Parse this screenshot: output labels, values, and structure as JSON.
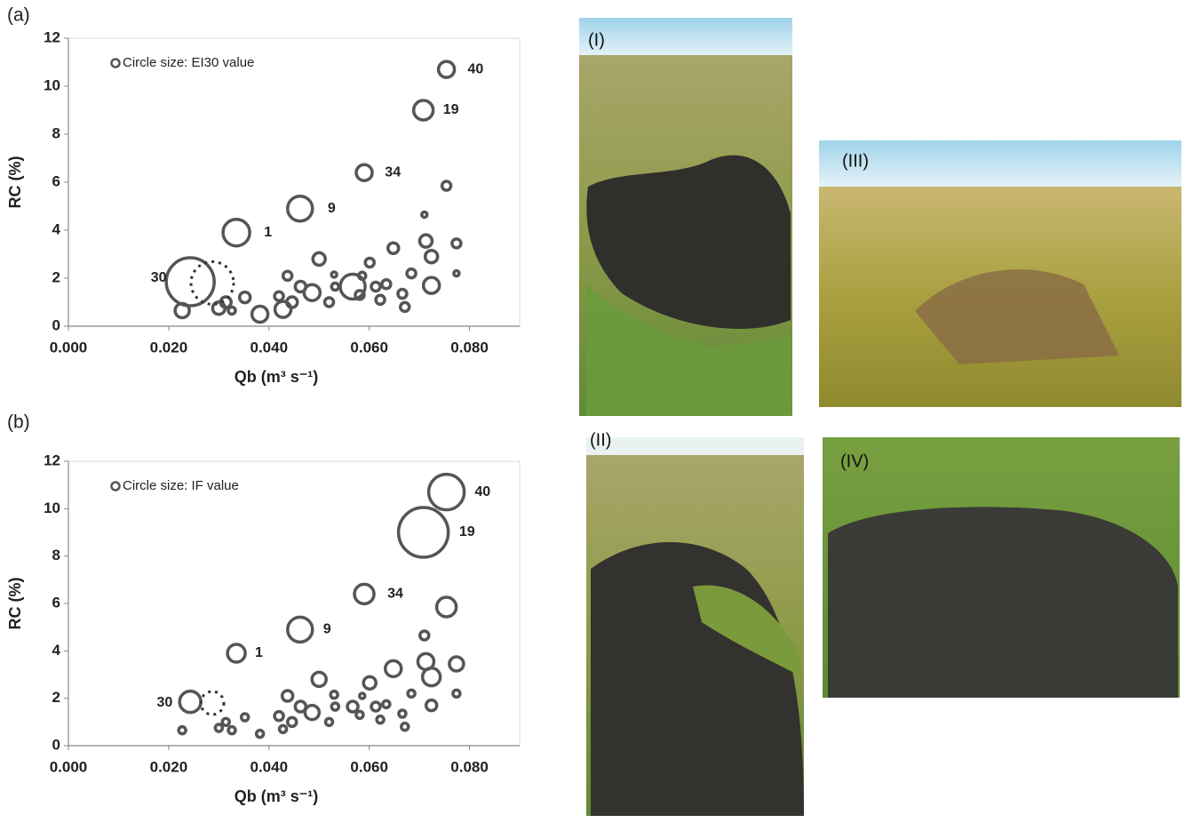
{
  "chart_data": [
    {
      "type": "bubble",
      "panel_label": "(a)",
      "x_label": "Qb (m³ s⁻¹)",
      "y_label": "RC (%)",
      "xlim": [
        0,
        0.09
      ],
      "ylim": [
        0,
        12
      ],
      "xticks": [
        {
          "value": 0,
          "label": "0.000"
        },
        {
          "value": 0.02,
          "label": "0.020"
        },
        {
          "value": 0.04,
          "label": "0.040"
        },
        {
          "value": 0.06,
          "label": "0.060"
        },
        {
          "value": 0.08,
          "label": "0.080"
        }
      ],
      "yticks": [
        0,
        2,
        4,
        6,
        8,
        10,
        12
      ],
      "series": [
        {
          "name": "Circle size: EI30 value",
          "color": "#555555",
          "x": [
            0.0754,
            0.0708,
            0.059,
            0.0462,
            0.0335,
            0.0243,
            0.0754,
            0.071,
            0.0713,
            0.0774,
            0.0724,
            0.0648,
            0.0724,
            0.0774,
            0.0684,
            0.0601,
            0.05,
            0.0567,
            0.0486,
            0.0463,
            0.0437,
            0.0428,
            0.0382,
            0.0352,
            0.03,
            0.0314,
            0.0326,
            0.0227,
            0.0446,
            0.042,
            0.052,
            0.0532,
            0.0581,
            0.0613,
            0.0622,
            0.0634,
            0.0666,
            0.0671,
            0.0586,
            0.053
          ],
          "y": [
            10.7,
            9.0,
            6.4,
            4.9,
            3.9,
            1.85,
            5.85,
            4.65,
            3.55,
            3.45,
            2.9,
            3.25,
            1.7,
            2.2,
            2.2,
            2.65,
            2.8,
            1.65,
            1.4,
            1.65,
            2.1,
            0.7,
            0.5,
            1.2,
            0.75,
            1.0,
            0.65,
            0.65,
            1.0,
            1.25,
            1.0,
            1.65,
            1.3,
            1.65,
            1.1,
            1.75,
            1.35,
            0.8,
            2.1,
            2.15
          ],
          "sizes": [
            9,
            11,
            9,
            14,
            15,
            27,
            5,
            3,
            7,
            5,
            7,
            6,
            9,
            3,
            5,
            5,
            7,
            14,
            9,
            6,
            5,
            9,
            9,
            6,
            7,
            6,
            4,
            8,
            6,
            5,
            5,
            4,
            5,
            5,
            5,
            5,
            5,
            5,
            4,
            3
          ]
        },
        {
          "color": "#333333",
          "dashed": true,
          "x": [
            0.0287
          ],
          "y": [
            1.8
          ],
          "sizes": [
            24
          ]
        }
      ],
      "annotations": [
        {
          "text": "40",
          "x": 0.0812,
          "y": 10.7
        },
        {
          "text": "19",
          "x": 0.0763,
          "y": 9.0
        },
        {
          "text": "34",
          "x": 0.0647,
          "y": 6.4
        },
        {
          "text": "9",
          "x": 0.0525,
          "y": 4.9
        },
        {
          "text": "1",
          "x": 0.0398,
          "y": 3.9
        },
        {
          "text": "30",
          "x": 0.018,
          "y": 2.0
        }
      ]
    },
    {
      "type": "bubble",
      "panel_label": "(b)",
      "x_label": "Qb (m³ s⁻¹)",
      "y_label": "RC (%)",
      "xlim": [
        0,
        0.09
      ],
      "ylim": [
        0,
        12
      ],
      "xticks": [
        {
          "value": 0,
          "label": "0.000"
        },
        {
          "value": 0.02,
          "label": "0.020"
        },
        {
          "value": 0.04,
          "label": "0.040"
        },
        {
          "value": 0.06,
          "label": "0.060"
        },
        {
          "value": 0.08,
          "label": "0.080"
        }
      ],
      "yticks": [
        0,
        2,
        4,
        6,
        8,
        10,
        12
      ],
      "series": [
        {
          "name": "Circle size: IF value",
          "color": "#555555",
          "x": [
            0.0754,
            0.0708,
            0.059,
            0.0462,
            0.0335,
            0.0243,
            0.0754,
            0.071,
            0.0713,
            0.0774,
            0.0724,
            0.0648,
            0.0724,
            0.0774,
            0.0684,
            0.0601,
            0.05,
            0.0567,
            0.0486,
            0.0463,
            0.0437,
            0.0428,
            0.0382,
            0.0352,
            0.03,
            0.0314,
            0.0326,
            0.0227,
            0.0446,
            0.042,
            0.052,
            0.0532,
            0.0581,
            0.0613,
            0.0622,
            0.0634,
            0.0666,
            0.0671,
            0.0586,
            0.053
          ],
          "y": [
            10.7,
            9.0,
            6.4,
            4.9,
            3.9,
            1.85,
            5.85,
            4.65,
            3.55,
            3.45,
            2.9,
            3.25,
            1.7,
            2.2,
            2.2,
            2.65,
            2.8,
            1.65,
            1.4,
            1.65,
            2.1,
            0.7,
            0.5,
            1.2,
            0.75,
            1.0,
            0.65,
            0.65,
            1.0,
            1.25,
            1.0,
            1.65,
            1.3,
            1.65,
            1.1,
            1.75,
            1.35,
            0.8,
            2.1,
            2.15
          ],
          "sizes": [
            20,
            28,
            11,
            14,
            10,
            12,
            11,
            5,
            9,
            8,
            10,
            9,
            6,
            4,
            4,
            7,
            8,
            6,
            8,
            6,
            6,
            4,
            4,
            4,
            4,
            4,
            4,
            4,
            5,
            5,
            4,
            4,
            4,
            5,
            4,
            4,
            4,
            4,
            3,
            4
          ]
        },
        {
          "color": "#333333",
          "dashed": true,
          "x": [
            0.0287
          ],
          "y": [
            1.8
          ],
          "sizes": [
            13
          ]
        }
      ],
      "annotations": [
        {
          "text": "40",
          "x": 0.0826,
          "y": 10.7
        },
        {
          "text": "19",
          "x": 0.0795,
          "y": 9.0
        },
        {
          "text": "34",
          "x": 0.0652,
          "y": 6.4
        },
        {
          "text": "9",
          "x": 0.0516,
          "y": 4.9
        },
        {
          "text": "1",
          "x": 0.038,
          "y": 3.9
        },
        {
          "text": "30",
          "x": 0.0192,
          "y": 1.8
        }
      ]
    }
  ],
  "photos": [
    {
      "label": "(I)"
    },
    {
      "label": "(II)"
    },
    {
      "label": "(III)"
    },
    {
      "label": "(IV)"
    }
  ]
}
